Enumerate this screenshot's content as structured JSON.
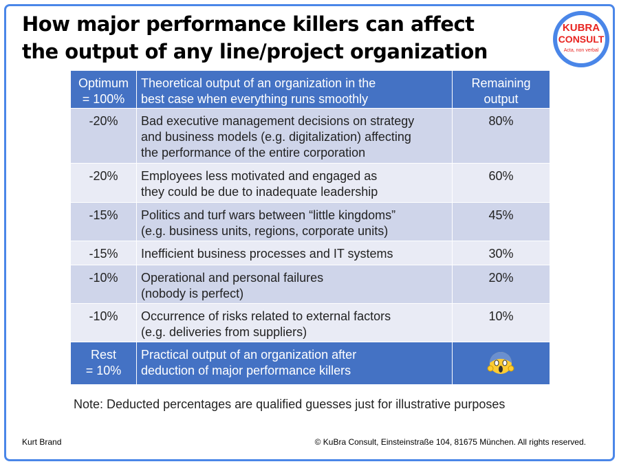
{
  "header": {
    "title_lines": [
      "How major performance killers can affect",
      "the output of any line/project organization"
    ],
    "logo": {
      "line1": "KUBRA",
      "line2": "CONSULT",
      "tagline": "Acta, non verbal"
    }
  },
  "table": {
    "header": [
      [
        "Optimum",
        "= 100%"
      ],
      [
        "Theoretical output of an organization in the",
        "best case when everything runs smoothly"
      ],
      [
        "Remaining",
        "output"
      ]
    ],
    "rows": [
      [
        [
          "-20%"
        ],
        [
          "Bad executive management decisions on strategy",
          "and business models (e.g. digitalization) affecting",
          "the performance of the entire corporation"
        ],
        [
          "80%"
        ]
      ],
      [
        [
          "-20%"
        ],
        [
          "Employees less motivated and engaged as",
          "they could be due to inadequate leadership"
        ],
        [
          "60%"
        ]
      ],
      [
        [
          "-15%"
        ],
        [
          "Politics and turf wars between “little kingdoms”",
          "(e.g. business units, regions, corporate units)"
        ],
        [
          "45%"
        ]
      ],
      [
        [
          "-15%"
        ],
        [
          "Inefficient business processes and IT systems"
        ],
        [
          "30%"
        ]
      ],
      [
        [
          "-10%"
        ],
        [
          "Operational and personal failures",
          "(nobody is perfect)"
        ],
        [
          "20%"
        ]
      ],
      [
        [
          "-10%"
        ],
        [
          "Occurrence of risks related to external factors",
          "(e.g. deliveries from suppliers)"
        ],
        [
          "10%"
        ]
      ]
    ],
    "footer": [
      [
        "Rest",
        "= 10%"
      ],
      [
        "Practical output of an organization after",
        "deduction of major performance killers"
      ]
    ]
  },
  "note": "Note: Deducted percentages are qualified guesses just for illustrative purposes",
  "footer": {
    "author": "Kurt Brand",
    "copyright": "© KuBra Consult, Einsteinstraße 104, 81675 München. All rights reserved."
  }
}
